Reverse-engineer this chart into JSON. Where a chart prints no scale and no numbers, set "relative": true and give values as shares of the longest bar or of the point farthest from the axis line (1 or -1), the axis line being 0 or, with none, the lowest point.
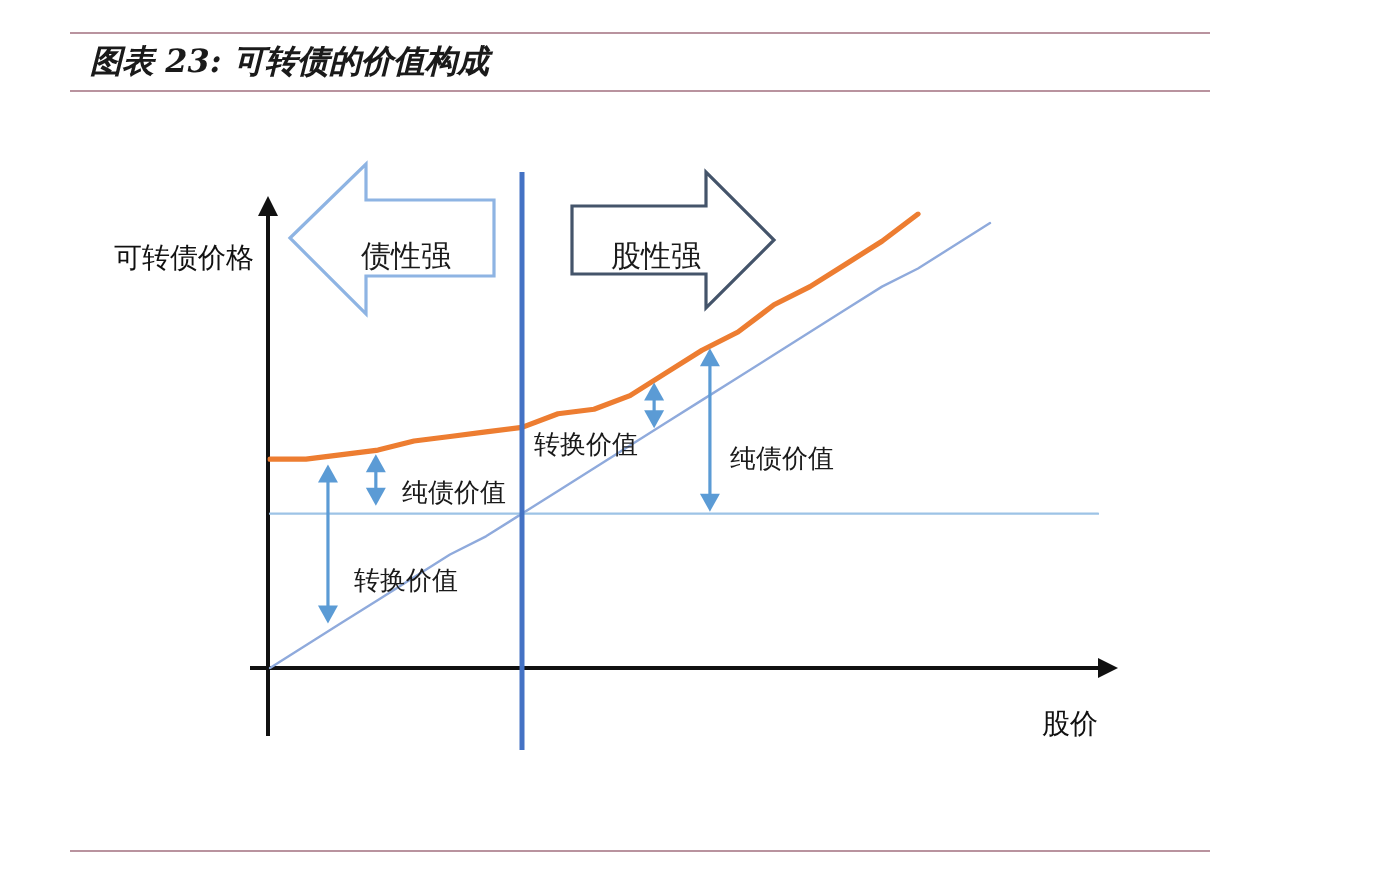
{
  "chart_data": {
    "type": "line",
    "title": "图表 23: 可转债的价值构成",
    "xlabel": "股价",
    "ylabel": "可转债价格",
    "relative": true,
    "marker": "none",
    "categories": [
      null,
      null,
      null,
      null,
      null,
      null,
      null,
      null,
      null,
      null,
      null,
      null,
      null,
      null,
      null,
      null,
      null,
      null,
      null,
      null,
      null,
      null,
      null,
      null
    ],
    "series": [
      {
        "color": "#ed7d31",
        "values": [
          0.46,
          0.46,
          0.47,
          0.48,
          0.5,
          0.51,
          0.52,
          0.53,
          0.56,
          0.57,
          0.6,
          0.65,
          0.7,
          0.74,
          0.8,
          0.84,
          0.89,
          0.94,
          1.0,
          null,
          null,
          null,
          null,
          null
        ]
      },
      {
        "color": "#9dc3e6",
        "values": [
          0.34,
          0.34,
          0.34,
          0.34,
          0.34,
          0.34,
          0.34,
          0.34,
          0.34,
          0.34,
          0.34,
          0.34,
          0.34,
          0.34,
          0.34,
          0.34,
          0.34,
          0.34,
          0.34,
          0.34,
          0.34,
          0.34,
          0.34,
          0.34
        ]
      },
      {
        "color": "#8faadc",
        "values": [
          0,
          0.05,
          0.1,
          0.15,
          0.2,
          0.25,
          0.29,
          0.34,
          0.39,
          0.44,
          0.49,
          0.54,
          0.59,
          0.64,
          0.69,
          0.74,
          0.79,
          0.84,
          0.88,
          0.93,
          0.98,
          null,
          null,
          null
        ]
      }
    ],
    "annotations": [
      "债性强",
      "股性强",
      "转换价值",
      "纯债价值",
      "纯债价值",
      "转换价值"
    ]
  }
}
